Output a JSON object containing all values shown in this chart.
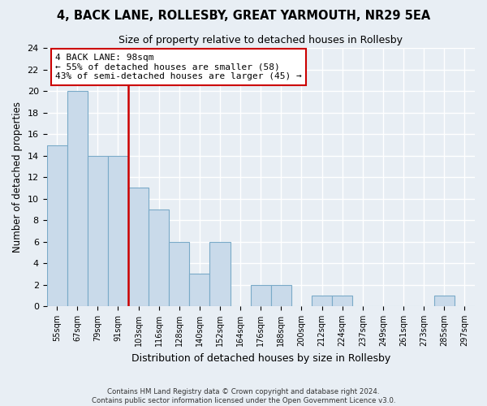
{
  "title": "4, BACK LANE, ROLLESBY, GREAT YARMOUTH, NR29 5EA",
  "subtitle": "Size of property relative to detached houses in Rollesby",
  "xlabel": "Distribution of detached houses by size in Rollesby",
  "ylabel": "Number of detached properties",
  "bin_labels": [
    "55sqm",
    "67sqm",
    "79sqm",
    "91sqm",
    "103sqm",
    "116sqm",
    "128sqm",
    "140sqm",
    "152sqm",
    "164sqm",
    "176sqm",
    "188sqm",
    "200sqm",
    "212sqm",
    "224sqm",
    "237sqm",
    "249sqm",
    "261sqm",
    "273sqm",
    "285sqm",
    "297sqm"
  ],
  "bar_heights": [
    15,
    20,
    14,
    14,
    11,
    9,
    6,
    3,
    6,
    0,
    2,
    2,
    0,
    1,
    1,
    0,
    0,
    0,
    0,
    1,
    0
  ],
  "bar_color": "#c9daea",
  "bar_edge_color": "#7aaac8",
  "property_line_color": "#cc0000",
  "annotation_title": "4 BACK LANE: 98sqm",
  "annotation_line1": "← 55% of detached houses are smaller (58)",
  "annotation_line2": "43% of semi-detached houses are larger (45) →",
  "annotation_box_color": "#ffffff",
  "annotation_box_edge_color": "#cc0000",
  "ylim": [
    0,
    24
  ],
  "yticks": [
    0,
    2,
    4,
    6,
    8,
    10,
    12,
    14,
    16,
    18,
    20,
    22,
    24
  ],
  "footer1": "Contains HM Land Registry data © Crown copyright and database right 2024.",
  "footer2": "Contains public sector information licensed under the Open Government Licence v3.0.",
  "background_color": "#e8eef4",
  "grid_color": "#ffffff"
}
